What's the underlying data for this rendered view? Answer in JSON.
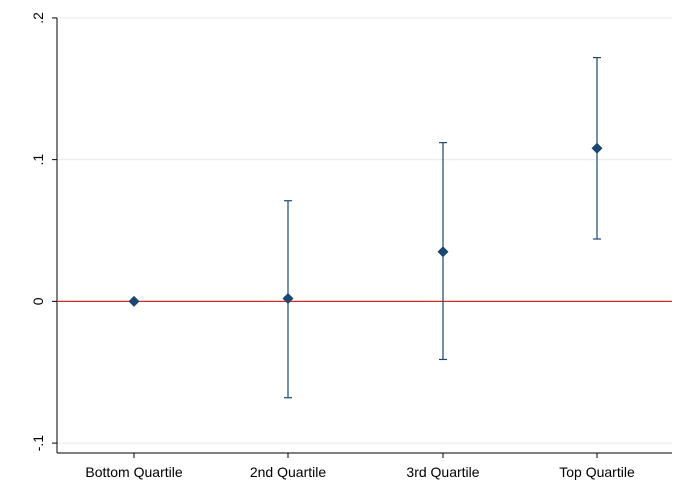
{
  "chart_data": {
    "type": "scatter",
    "title": "",
    "xlabel": "",
    "ylabel": "",
    "categories": [
      "Bottom Quartile",
      "2nd Quartile",
      "3rd Quartile",
      "Top Quartile"
    ],
    "series": [
      {
        "values": [
          0.0,
          0.002,
          0.035,
          0.108
        ],
        "ci_lower": [
          0.0,
          -0.068,
          -0.041,
          0.044
        ],
        "ci_upper": [
          0.0,
          0.071,
          0.112,
          0.172
        ]
      }
    ],
    "ylim": [
      -0.107,
      0.207
    ],
    "yticks": [
      -0.1,
      0,
      0.1,
      0.2
    ],
    "ytick_labels": [
      "-.1",
      "0",
      ".1",
      ".2"
    ],
    "reference_line": 0,
    "grid": true,
    "legend": "none",
    "marker_color": "#1a476f",
    "reference_line_color": "#d22b2b",
    "grid_color": "#eaeaea"
  }
}
